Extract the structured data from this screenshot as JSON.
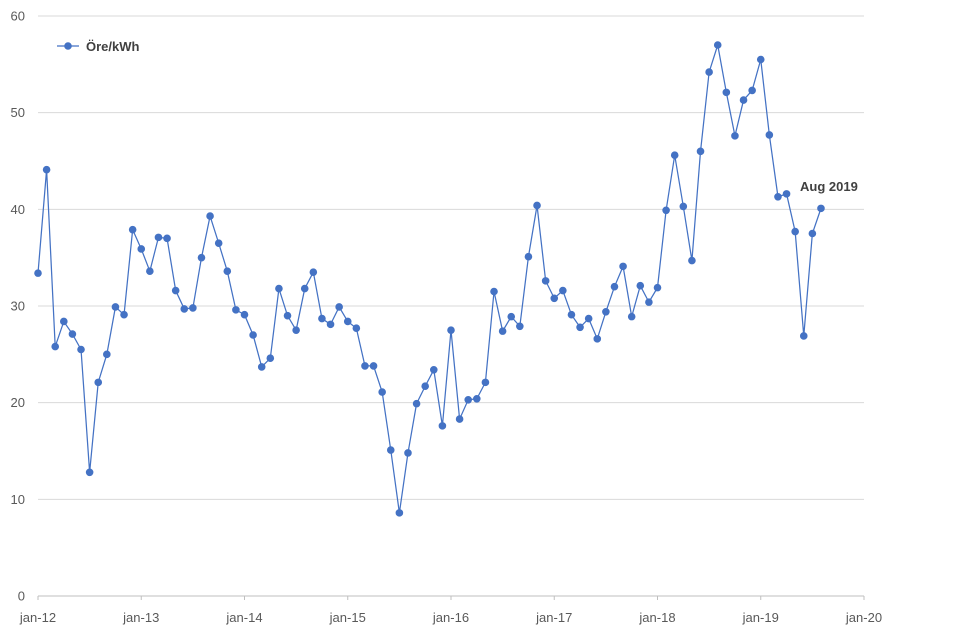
{
  "chart_data": {
    "type": "line",
    "legend_position": "top-left",
    "grid": true,
    "ylim": [
      0,
      60
    ],
    "yticks": [
      0,
      10,
      20,
      30,
      40,
      50,
      60
    ],
    "xlim": [
      0,
      96
    ],
    "xticks": [
      {
        "value": 0,
        "label": "jan-12"
      },
      {
        "value": 12,
        "label": "jan-13"
      },
      {
        "value": 24,
        "label": "jan-14"
      },
      {
        "value": 36,
        "label": "jan-15"
      },
      {
        "value": 48,
        "label": "jan-16"
      },
      {
        "value": 60,
        "label": "jan-17"
      },
      {
        "value": 72,
        "label": "jan-18"
      },
      {
        "value": 84,
        "label": "jan-19"
      },
      {
        "value": 96,
        "label": "jan-20"
      }
    ],
    "series": [
      {
        "name": "Öre/kWh",
        "color": "#4472c4",
        "values": [
          33.4,
          44.1,
          25.8,
          28.4,
          27.1,
          25.5,
          12.8,
          22.1,
          25.0,
          29.9,
          29.1,
          37.9,
          35.9,
          33.6,
          37.1,
          37.0,
          31.6,
          29.7,
          29.8,
          35.0,
          39.3,
          36.5,
          33.6,
          29.6,
          29.1,
          27.0,
          23.7,
          24.6,
          31.8,
          29.0,
          27.5,
          31.8,
          33.5,
          28.7,
          28.1,
          29.9,
          28.4,
          27.7,
          23.8,
          23.8,
          21.1,
          15.1,
          8.6,
          14.8,
          19.9,
          21.7,
          23.4,
          17.6,
          27.5,
          18.3,
          20.3,
          20.4,
          22.1,
          31.5,
          27.4,
          28.9,
          27.9,
          35.1,
          40.4,
          32.6,
          30.8,
          31.6,
          29.1,
          27.8,
          28.7,
          26.6,
          29.4,
          32.0,
          34.1,
          28.9,
          32.1,
          30.4,
          31.9,
          39.9,
          45.6,
          40.3,
          34.7,
          46.0,
          54.2,
          57.0,
          52.1,
          47.6,
          51.3,
          52.3,
          55.5,
          47.7,
          41.3,
          41.6,
          37.7,
          26.9,
          37.5,
          40.1
        ]
      }
    ],
    "annotations": [
      {
        "text": "Aug 2019",
        "x": 91,
        "y": 40.1
      }
    ]
  }
}
